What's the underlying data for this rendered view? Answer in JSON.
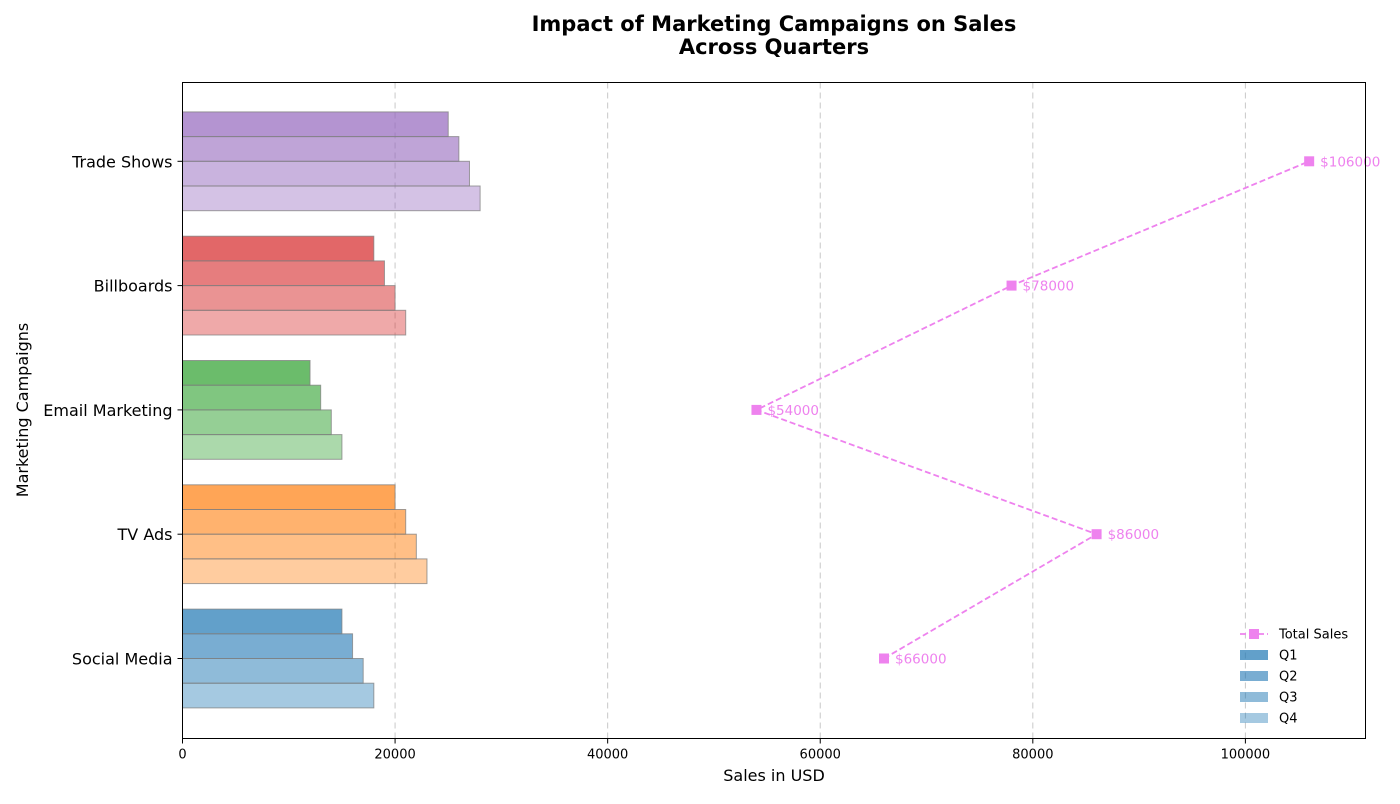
{
  "chart_data": {
    "type": "bar",
    "orientation": "horizontal",
    "title": "Impact of Marketing Campaigns on Sales",
    "subtitle": "Across Quarters",
    "xlabel": "Sales in USD",
    "ylabel": "Marketing Campaigns",
    "xlim": [
      0,
      111300
    ],
    "xticks": [
      "0",
      "20000",
      "40000",
      "60000",
      "80000",
      "100000"
    ],
    "xtick_values": [
      0,
      20000,
      40000,
      60000,
      80000,
      100000
    ],
    "grid": "x-axis dashed",
    "legend_position": "bottom-right",
    "categories": [
      "Social Media",
      "TV Ads",
      "Email Marketing",
      "Billboards",
      "Trade Shows"
    ],
    "category_colors": [
      "#1f77b4",
      "#ff7f0e",
      "#2ca02c",
      "#d62728",
      "#9467bd"
    ],
    "series": [
      {
        "name": "Q1",
        "values": [
          15000,
          20000,
          12000,
          18000,
          25000
        ],
        "opacity": 0.7
      },
      {
        "name": "Q2",
        "values": [
          16000,
          21000,
          13000,
          19000,
          26000
        ],
        "opacity": 0.6
      },
      {
        "name": "Q3",
        "values": [
          17000,
          22000,
          14000,
          20000,
          27000
        ],
        "opacity": 0.5
      },
      {
        "name": "Q4",
        "values": [
          18000,
          23000,
          15000,
          21000,
          28000
        ],
        "opacity": 0.4
      }
    ],
    "total_sales": {
      "name": "Total Sales",
      "values": [
        66000,
        86000,
        54000,
        78000,
        106000
      ],
      "labels": [
        "$66000",
        "$86000",
        "$54000",
        "$78000",
        "$106000"
      ],
      "color": "#ee82ee",
      "style": "dashed line with square markers"
    }
  }
}
